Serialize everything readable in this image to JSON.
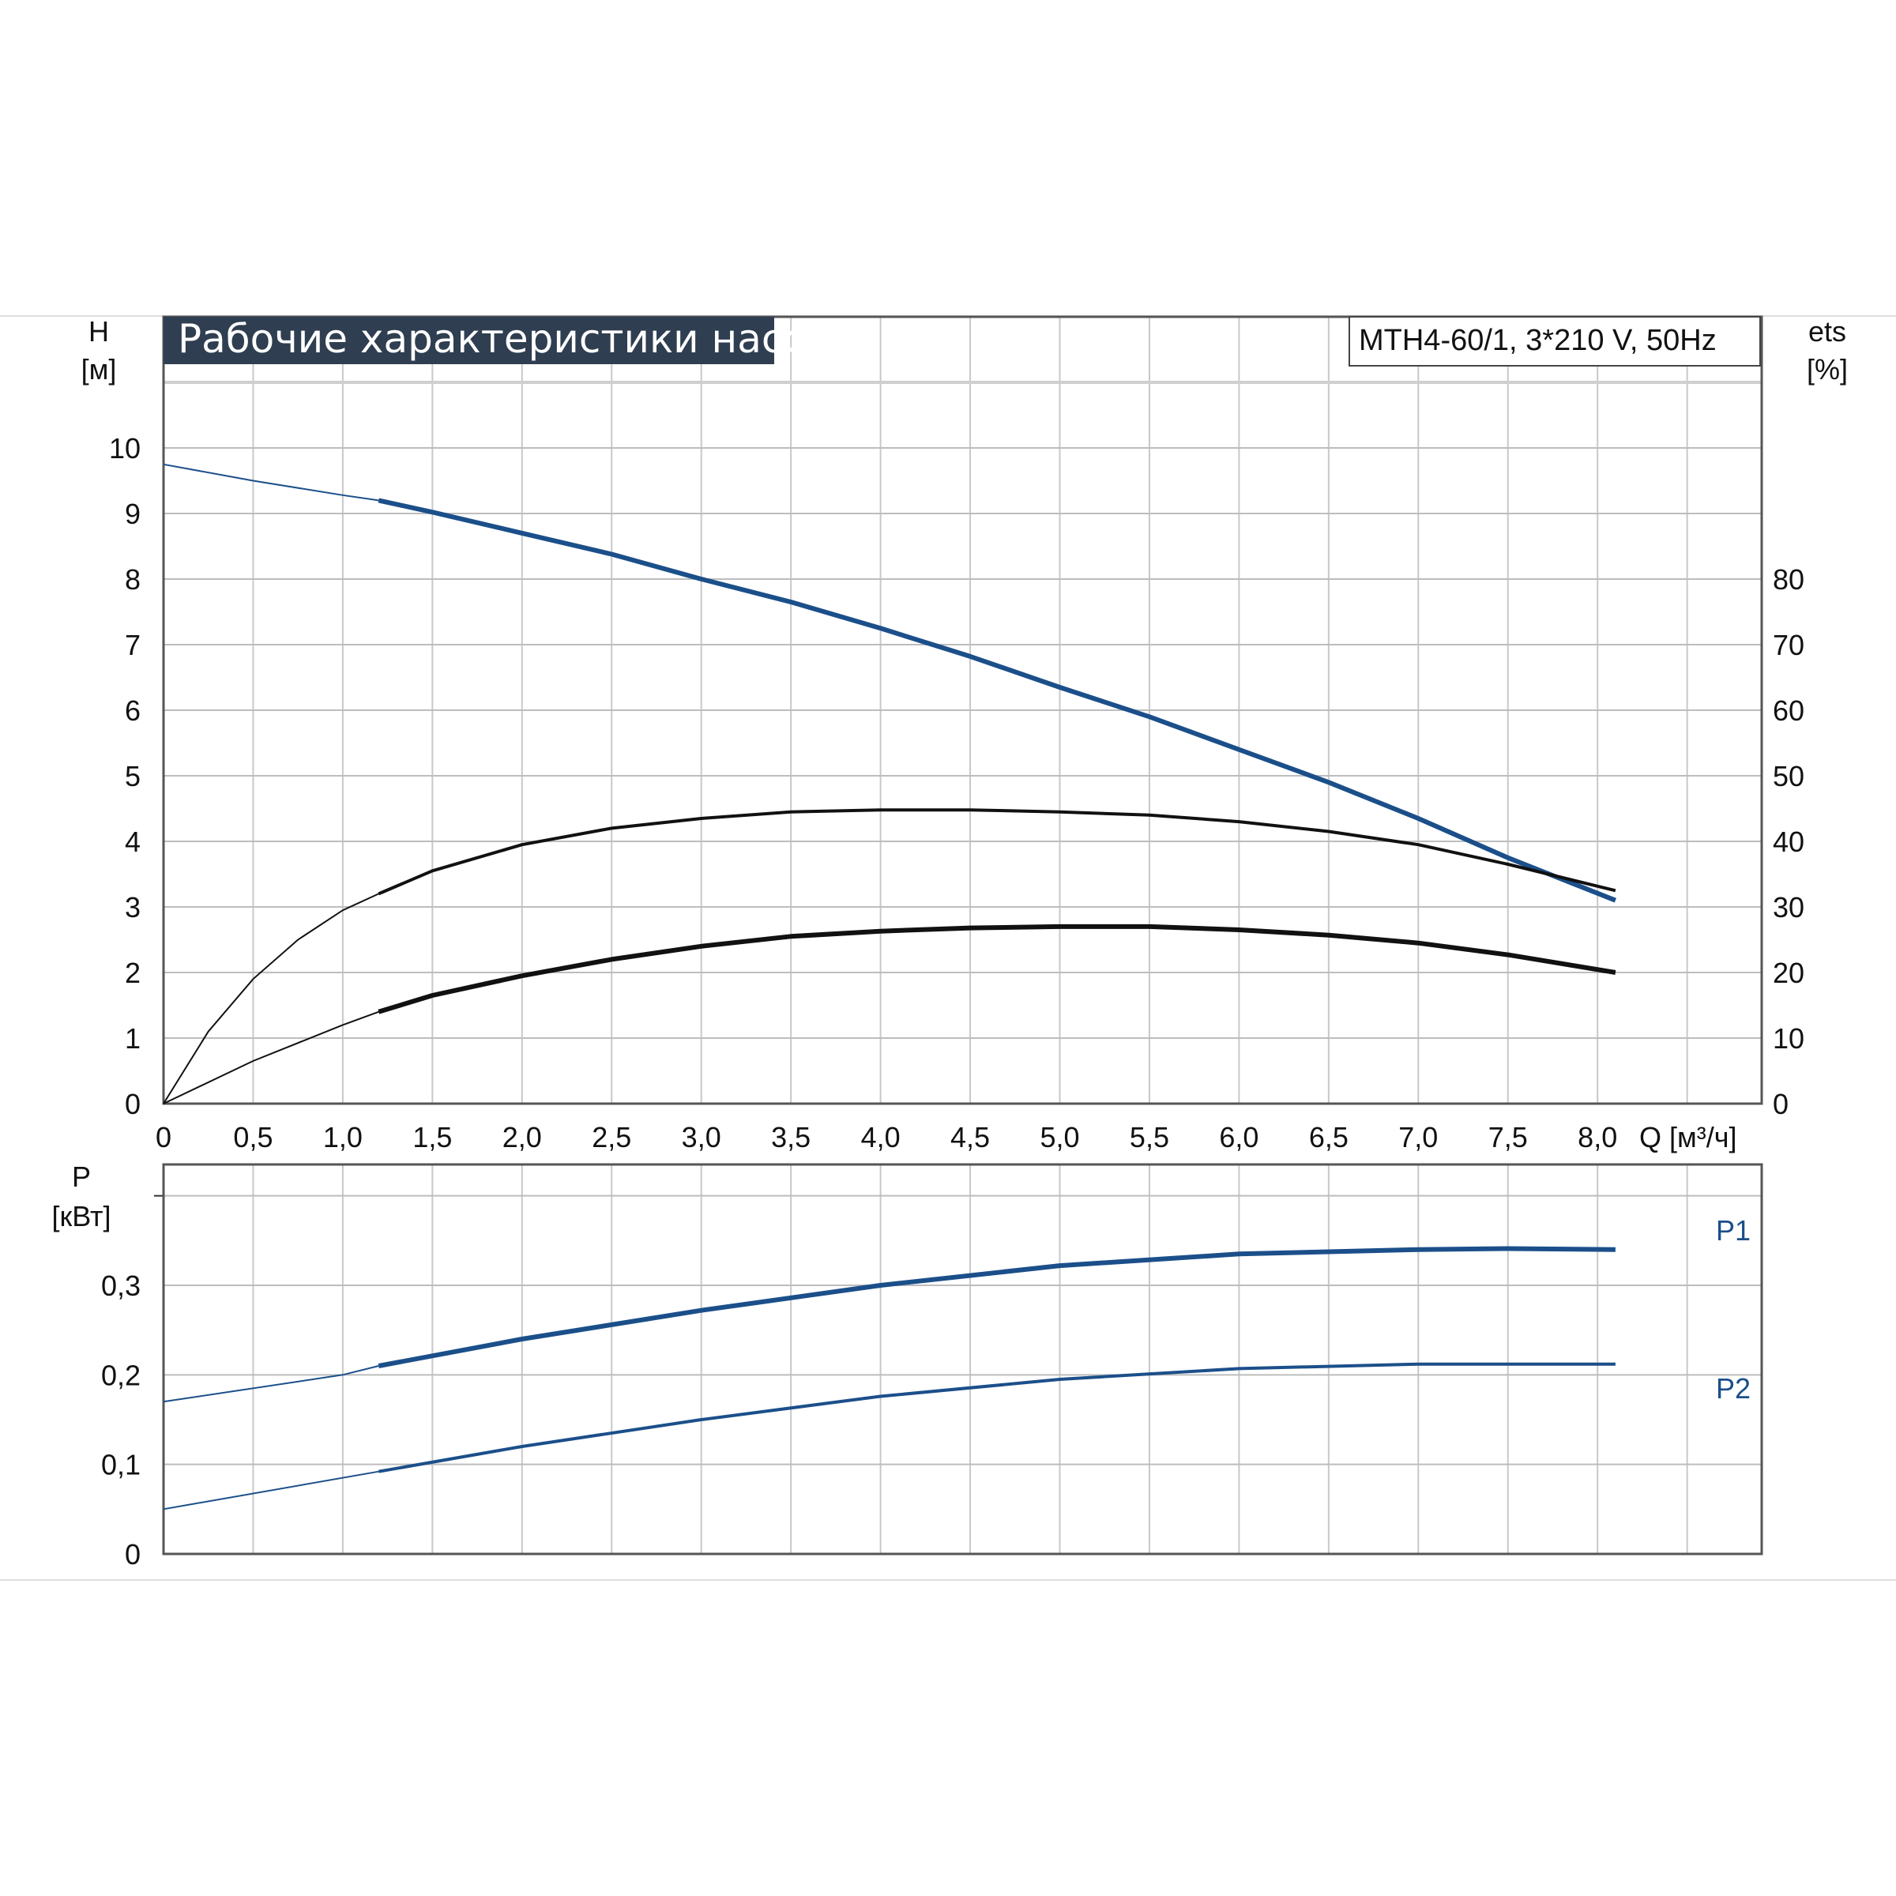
{
  "chart_data": [
    {
      "type": "line",
      "title": "Рабочие характеристики насоса",
      "subtitle": "MTH4-60/1, 3*210 V, 50Hz",
      "xlabel": "Q [м³/ч]",
      "ylabel": "H [м]",
      "ylabel_right": "ets [%]",
      "xlim": [
        0,
        8.92
      ],
      "ylim": [
        0,
        12
      ],
      "ylim_right": [
        0,
        120
      ],
      "grid": true,
      "x_ticks": [
        "0",
        "0,5",
        "1,0",
        "1,5",
        "2,0",
        "2,5",
        "3,0",
        "3,5",
        "4,0",
        "4,5",
        "5,0",
        "5,5",
        "6,0",
        "6,5",
        "7,0",
        "7,5",
        "8,0"
      ],
      "y_ticks": [
        "0",
        "1",
        "2",
        "3",
        "4",
        "5",
        "6",
        "7",
        "8",
        "9",
        "10"
      ],
      "y_ticks_right": [
        "0",
        "10",
        "20",
        "30",
        "40",
        "50",
        "60",
        "70",
        "80"
      ],
      "series": [
        {
          "axis": "left",
          "color": "#1b4f8a",
          "x": [
            0,
            0.5,
            1.0,
            1.2,
            1.5,
            2,
            2.5,
            3,
            3.5,
            4,
            4.5,
            5,
            5.5,
            6,
            6.5,
            7,
            7.5,
            8.1
          ],
          "y": [
            9.75,
            9.5,
            9.28,
            9.2,
            9.02,
            8.7,
            8.38,
            8.0,
            7.65,
            7.25,
            6.82,
            6.35,
            5.9,
            5.4,
            4.9,
            4.35,
            3.75,
            3.1
          ]
        },
        {
          "axis": "right",
          "color": "#111111",
          "x": [
            0,
            0.25,
            0.5,
            0.75,
            1.0,
            1.2,
            1.5,
            2,
            2.5,
            3,
            3.5,
            4,
            4.5,
            5,
            5.5,
            6,
            6.5,
            7,
            7.5,
            8.1
          ],
          "y": [
            0,
            11,
            19,
            25,
            29.5,
            32,
            35.5,
            39.5,
            42,
            43.5,
            44.5,
            44.8,
            44.8,
            44.5,
            44,
            43,
            41.5,
            39.5,
            36.5,
            32.5
          ]
        },
        {
          "axis": "right",
          "color": "#111111",
          "x": [
            0,
            0.5,
            1.0,
            1.2,
            1.5,
            2,
            2.5,
            3,
            3.5,
            4,
            4.5,
            5,
            5.5,
            6,
            6.5,
            7,
            7.5,
            8.1
          ],
          "y": [
            0,
            6.5,
            12,
            14,
            16.5,
            19.5,
            22,
            24,
            25.5,
            26.3,
            26.8,
            27,
            27,
            26.5,
            25.7,
            24.5,
            22.7,
            20
          ]
        }
      ]
    },
    {
      "type": "line",
      "xlabel": "",
      "ylabel": "P [кВт]",
      "xlim": [
        0,
        8.92
      ],
      "ylim": [
        0,
        0.435
      ],
      "grid": true,
      "y_ticks": [
        "0",
        "0,1",
        "0,2",
        "0,3"
      ],
      "series": [
        {
          "name": "P1",
          "color": "#1b4f8a",
          "x": [
            0,
            1.0,
            1.2,
            2,
            3,
            4,
            5,
            6,
            7,
            7.5,
            8.1
          ],
          "y": [
            0.17,
            0.2,
            0.21,
            0.24,
            0.272,
            0.3,
            0.322,
            0.335,
            0.34,
            0.341,
            0.34
          ]
        },
        {
          "name": "P2",
          "color": "#1b4f8a",
          "x": [
            0,
            1.2,
            2,
            3,
            4,
            5,
            6,
            7,
            8.1
          ],
          "y": [
            0.05,
            0.092,
            0.12,
            0.15,
            0.176,
            0.195,
            0.207,
            0.212,
            0.212
          ]
        }
      ]
    }
  ]
}
